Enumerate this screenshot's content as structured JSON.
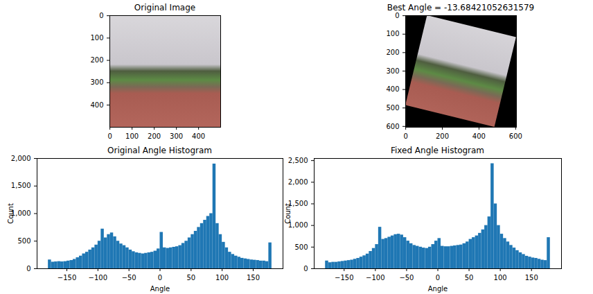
{
  "chart_data": [
    {
      "type": "image",
      "title": "Original Image",
      "xlim": [
        -0.5,
        499.5
      ],
      "ylim": [
        499.5,
        -0.5
      ],
      "xticks": [
        0,
        100,
        200,
        300,
        400
      ],
      "yticks": [
        0,
        100,
        200,
        300,
        400
      ]
    },
    {
      "type": "image",
      "title": "Best Angle = -13.68421052631579",
      "rotation": -13.68421052631579,
      "xlim": [
        -0.5,
        604.5
      ],
      "ylim": [
        604.5,
        -0.5
      ],
      "xticks": [
        0,
        200,
        400,
        600
      ],
      "yticks": [
        0,
        100,
        200,
        300,
        400,
        500,
        600
      ]
    },
    {
      "type": "histogram",
      "title": "Original Angle Histogram",
      "x_label": "Angle",
      "y_label": "Count",
      "color": "#1f77b4",
      "bins": [
        -180,
        -175,
        -170,
        -165,
        -160,
        -155,
        -150,
        -145,
        -140,
        -135,
        -130,
        -125,
        -120,
        -115,
        -110,
        -105,
        -100,
        -95,
        -90,
        -85,
        -80,
        -75,
        -70,
        -65,
        -60,
        -55,
        -50,
        -45,
        -40,
        -35,
        -30,
        -25,
        -20,
        -15,
        -10,
        -5,
        0,
        5,
        10,
        15,
        20,
        25,
        30,
        35,
        40,
        45,
        50,
        55,
        60,
        65,
        70,
        75,
        80,
        85,
        90,
        95,
        100,
        105,
        110,
        115,
        120,
        125,
        130,
        135,
        140,
        145,
        150,
        155,
        160,
        165,
        170,
        175,
        180
      ],
      "counts": [
        160,
        120,
        125,
        130,
        125,
        130,
        140,
        150,
        170,
        200,
        230,
        270,
        300,
        340,
        380,
        430,
        500,
        720,
        560,
        620,
        650,
        580,
        500,
        450,
        420,
        380,
        340,
        310,
        290,
        280,
        270,
        280,
        290,
        300,
        320,
        360,
        660,
        380,
        370,
        380,
        390,
        400,
        420,
        460,
        500,
        560,
        620,
        680,
        750,
        820,
        880,
        950,
        1000,
        1900,
        820,
        620,
        480,
        380,
        300,
        260,
        230,
        210,
        190,
        180,
        170,
        160,
        155,
        150,
        140,
        140,
        130,
        470
      ],
      "xlim": [
        -198,
        198
      ],
      "ylim": [
        0,
        2000
      ],
      "xticks": [
        -150,
        -100,
        -50,
        0,
        50,
        100,
        150
      ],
      "yticks": [
        0,
        500,
        1000,
        1500,
        2000
      ]
    },
    {
      "type": "histogram",
      "title": "Fixed Angle Histogram",
      "x_label": "Angle",
      "y_label": "Count",
      "color": "#1f77b4",
      "bins": [
        -180,
        -175,
        -170,
        -165,
        -160,
        -155,
        -150,
        -145,
        -140,
        -135,
        -130,
        -125,
        -120,
        -115,
        -110,
        -105,
        -100,
        -95,
        -90,
        -85,
        -80,
        -75,
        -70,
        -65,
        -60,
        -55,
        -50,
        -45,
        -40,
        -35,
        -30,
        -25,
        -20,
        -15,
        -10,
        -5,
        0,
        5,
        10,
        15,
        20,
        25,
        30,
        35,
        40,
        45,
        50,
        55,
        60,
        65,
        70,
        75,
        80,
        85,
        90,
        95,
        100,
        105,
        110,
        115,
        120,
        125,
        130,
        135,
        140,
        145,
        150,
        155,
        160,
        165,
        170,
        175,
        180
      ],
      "counts": [
        180,
        140,
        150,
        150,
        160,
        170,
        180,
        190,
        200,
        220,
        240,
        270,
        300,
        340,
        400,
        470,
        560,
        960,
        680,
        700,
        730,
        760,
        790,
        800,
        780,
        720,
        640,
        580,
        540,
        520,
        500,
        480,
        470,
        500,
        560,
        640,
        700,
        520,
        510,
        510,
        520,
        530,
        540,
        550,
        580,
        620,
        680,
        720,
        760,
        820,
        900,
        1000,
        1200,
        2430,
        1500,
        1000,
        800,
        700,
        620,
        540,
        480,
        420,
        370,
        330,
        290,
        270,
        250,
        240,
        220,
        200,
        190,
        720
      ],
      "xlim": [
        -198,
        198
      ],
      "ylim": [
        0,
        2550
      ],
      "xticks": [
        -150,
        -100,
        -50,
        0,
        50,
        100,
        150
      ],
      "yticks": [
        0,
        500,
        1000,
        1500,
        2000,
        2500
      ]
    }
  ]
}
